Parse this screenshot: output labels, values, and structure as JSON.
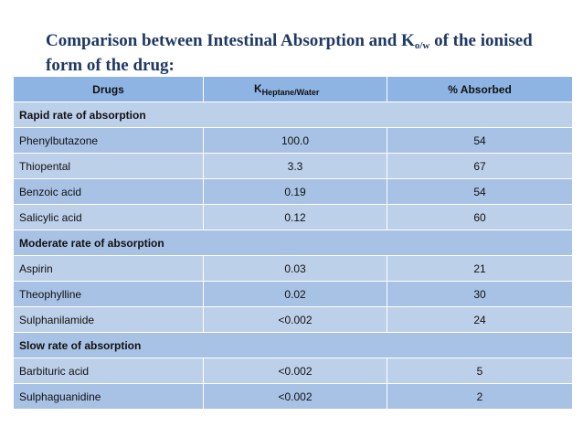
{
  "title": {
    "part1": "Comparison between Intestinal Absorption and K",
    "subscript": "o/w",
    "part2": " of the ionised form of the drug:"
  },
  "table": {
    "headers": {
      "drugs": "Drugs",
      "k_main": "K",
      "k_sub": "Heptane/Water",
      "absorbed": "% Absorbed"
    },
    "groups": [
      {
        "label": "Rapid rate of absorption",
        "rows": [
          {
            "drug": "Phenylbutazone",
            "k": "100.0",
            "absorbed": "54"
          },
          {
            "drug": "Thiopental",
            "k": "3.3",
            "absorbed": "67"
          },
          {
            "drug": "Benzoic acid",
            "k": "0.19",
            "absorbed": "54"
          },
          {
            "drug": "Salicylic acid",
            "k": "0.12",
            "absorbed": "60"
          }
        ]
      },
      {
        "label": "Moderate rate of absorption",
        "rows": [
          {
            "drug": "Aspirin",
            "k": "0.03",
            "absorbed": "21"
          },
          {
            "drug": "Theophylline",
            "k": "0.02",
            "absorbed": "30"
          },
          {
            "drug": "Sulphanilamide",
            "k": "<0.002",
            "absorbed": "24"
          }
        ]
      },
      {
        "label": "Slow rate of absorption",
        "rows": [
          {
            "drug": "Barbituric acid",
            "k": "<0.002",
            "absorbed": "5"
          },
          {
            "drug": "Sulphaguanidine",
            "k": "<0.002",
            "absorbed": "2"
          }
        ]
      }
    ]
  }
}
